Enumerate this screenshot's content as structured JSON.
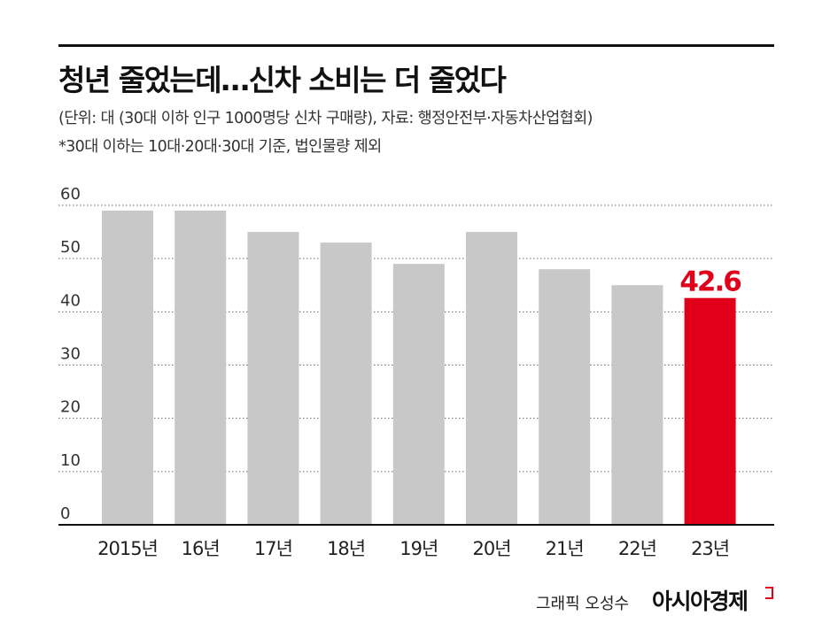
{
  "title": "청년 줄었는데…신차 소비는 더 줄었다",
  "subtitle": "(단위: 대 (30대 이하 인구 1000명당 신차 구매량), 자료: 행정안전부·자동차산업협회)",
  "note": "*30대 이하는 10대·20대·30대 기준, 법인물량 제외",
  "credit": "그래픽 오성수",
  "publisher": "아시아경제",
  "colors": {
    "bar": "#c8c8c8",
    "highlight": "#e0001a",
    "gridline": "#666666",
    "rule": "#111111"
  },
  "chart_data": {
    "type": "bar",
    "categories": [
      "2015년",
      "16년",
      "17년",
      "18년",
      "19년",
      "20년",
      "21년",
      "22년",
      "23년"
    ],
    "values": [
      59,
      59,
      55,
      53,
      49,
      55,
      48,
      45,
      42.6
    ],
    "ylim": [
      0,
      60
    ],
    "yticks": [
      0,
      10,
      20,
      30,
      40,
      50,
      60
    ],
    "grid": true,
    "highlight_index": 8,
    "data_labels": [
      {
        "index": 8,
        "text": "42.6"
      }
    ],
    "xlabel": "",
    "ylabel": ""
  }
}
